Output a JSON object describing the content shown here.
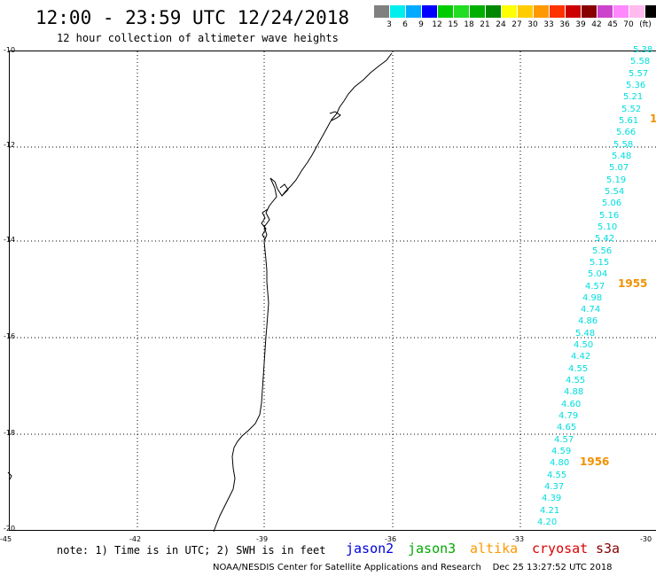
{
  "header": {
    "title": "12:00 - 23:59 UTC 12/24/2018",
    "subtitle": "12 hour collection of altimeter wave heights"
  },
  "legend": {
    "swatches": [
      {
        "color": "#808080",
        "label": ""
      },
      {
        "color": "#00eeee",
        "label": "3"
      },
      {
        "color": "#00aaff",
        "label": "6"
      },
      {
        "color": "#0000ff",
        "label": "9"
      },
      {
        "color": "#00cc00",
        "label": "12"
      },
      {
        "color": "#22dd22",
        "label": "15"
      },
      {
        "color": "#00b000",
        "label": "18"
      },
      {
        "color": "#008800",
        "label": "21"
      },
      {
        "color": "#ffff00",
        "label": "24"
      },
      {
        "color": "#ffcc00",
        "label": "27"
      },
      {
        "color": "#ff9900",
        "label": "30"
      },
      {
        "color": "#ff3300",
        "label": "33"
      },
      {
        "color": "#cc0000",
        "label": "36"
      },
      {
        "color": "#880000",
        "label": "39"
      },
      {
        "color": "#cc44cc",
        "label": "42"
      },
      {
        "color": "#ff88ff",
        "label": "45"
      },
      {
        "color": "#ffbbee",
        "label": "70"
      },
      {
        "color": "#000000",
        "label": "(ft)"
      }
    ]
  },
  "axes": {
    "y_labels": [
      "-10",
      "-12",
      "-14",
      "-16",
      "-18",
      "-20"
    ],
    "x_labels": [
      "-45",
      "-42",
      "-39",
      "-36",
      "-33",
      "-30"
    ]
  },
  "swh_values": [
    "5.38",
    "5.58",
    "5.57",
    "5.36",
    "5.21",
    "5.52",
    "5.61",
    "5.66",
    "5.58",
    "5.48",
    "5.07",
    "5.19",
    "5.54",
    "5.06",
    "5.16",
    "5.10",
    "5.42",
    "5.56",
    "5.15",
    "5.04",
    "4.57",
    "4.98",
    "4.74",
    "4.86",
    "5.48",
    "4.50",
    "4.42",
    "4.55",
    "4.55",
    "4.88",
    "4.60",
    "4.79",
    "4.65",
    "4.57",
    "4.59",
    "4.80",
    "4.55",
    "4.37",
    "4.39",
    "4.21",
    "4.20"
  ],
  "pass_labels": [
    "1",
    "1955",
    "1956"
  ],
  "note": "note: 1) Time is in UTC; 2) SWH is in feet",
  "satellites": [
    {
      "name": "jason2",
      "color": "#0000dd"
    },
    {
      "name": "jason3",
      "color": "#00aa00"
    },
    {
      "name": "altika",
      "color": "#ff9900"
    },
    {
      "name": "cryosat",
      "color": "#dd0000"
    },
    {
      "name": "s3a",
      "color": "#880000"
    }
  ],
  "credit": "NOAA/NESDIS Center for Satellite Applications and Research    Dec 25 13:27:52 UTC 2018"
}
